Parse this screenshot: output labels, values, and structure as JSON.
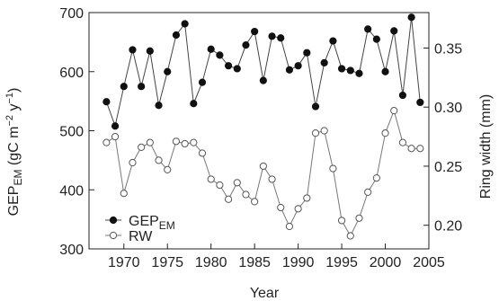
{
  "chart_data": {
    "type": "line",
    "xlabel": "Year",
    "ylabel_left": "GEPEM (gC m−2 y−1)",
    "ylabel_left_parts": {
      "main": "GEP",
      "sub": "EM",
      "units_open": " (gC m",
      "units_sup1": "−2",
      "units_mid": " y",
      "units_sup2": "−1",
      "units_close": ")"
    },
    "ylabel_right": "Ring width (mm)",
    "xlim": [
      1966,
      2005
    ],
    "ylim_left": [
      300,
      700
    ],
    "ylim_right": [
      0.18,
      0.38
    ],
    "x_ticks": [
      1970,
      1975,
      1980,
      1985,
      1990,
      1995,
      2000,
      2005
    ],
    "x_tick_labels": [
      "1970",
      "1975",
      "1980",
      "1985",
      "1990",
      "1995",
      "2000",
      "2005"
    ],
    "y_left_ticks": [
      300,
      400,
      500,
      600,
      700
    ],
    "y_left_tick_labels": [
      "300",
      "400",
      "500",
      "600",
      "700"
    ],
    "y_right_ticks": [
      0.2,
      0.25,
      0.3,
      0.35
    ],
    "y_right_tick_labels": [
      "0.20",
      "0.25",
      "0.30",
      "0.35"
    ],
    "grid": false,
    "legend_position": "bottom-left",
    "legend": [
      {
        "name": "GEP",
        "subscript": "EM",
        "marker": "filled-circle"
      },
      {
        "name": "RW",
        "subscript": "",
        "marker": "open-circle"
      }
    ],
    "series": [
      {
        "name": "GEPEM",
        "axis": "left",
        "marker": "filled-circle",
        "x": [
          1968,
          1969,
          1970,
          1971,
          1972,
          1973,
          1974,
          1975,
          1976,
          1977,
          1978,
          1979,
          1980,
          1981,
          1982,
          1983,
          1984,
          1985,
          1986,
          1987,
          1988,
          1989,
          1990,
          1991,
          1992,
          1993,
          1994,
          1995,
          1996,
          1997,
          1998,
          1999,
          2000,
          2001,
          2002,
          2003,
          2004
        ],
        "values": [
          549,
          508,
          575,
          637,
          575,
          635,
          543,
          600,
          662,
          681,
          546,
          582,
          638,
          628,
          610,
          605,
          645,
          668,
          585,
          660,
          657,
          603,
          610,
          632,
          541,
          615,
          652,
          605,
          602,
          597,
          672,
          655,
          600,
          669,
          560,
          692,
          548
        ]
      },
      {
        "name": "RW",
        "axis": "right",
        "marker": "open-circle",
        "x": [
          1968,
          1969,
          1970,
          1971,
          1972,
          1973,
          1974,
          1975,
          1976,
          1977,
          1978,
          1979,
          1980,
          1981,
          1982,
          1983,
          1984,
          1985,
          1986,
          1987,
          1988,
          1989,
          1990,
          1991,
          1992,
          1993,
          1994,
          1995,
          1996,
          1997,
          1998,
          1999,
          2000,
          2001,
          2002,
          2003,
          2004
        ],
        "values": [
          0.27,
          0.275,
          0.227,
          0.253,
          0.266,
          0.27,
          0.255,
          0.247,
          0.271,
          0.269,
          0.27,
          0.261,
          0.239,
          0.234,
          0.222,
          0.236,
          0.226,
          0.22,
          0.25,
          0.239,
          0.215,
          0.199,
          0.214,
          0.223,
          0.278,
          0.28,
          0.248,
          0.204,
          0.191,
          0.206,
          0.228,
          0.24,
          0.278,
          0.297,
          0.27,
          0.265,
          0.265
        ]
      }
    ]
  }
}
